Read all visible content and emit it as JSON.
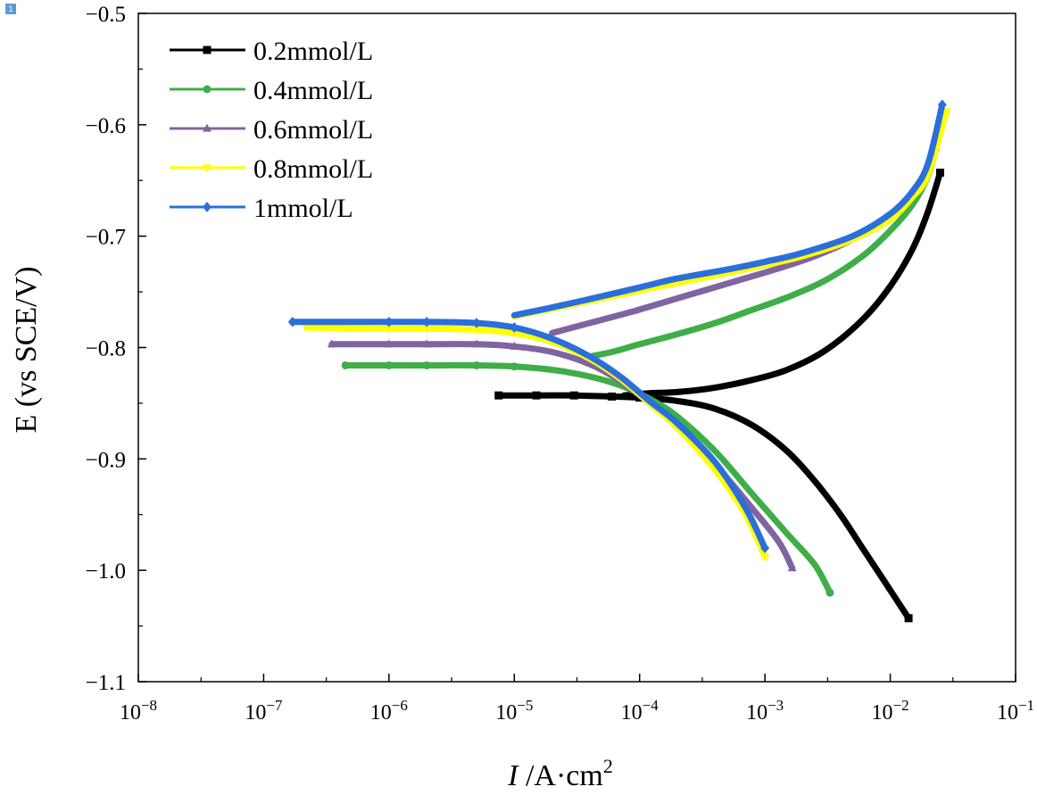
{
  "badge": "1",
  "chart_data": {
    "type": "line",
    "title": "",
    "xlabel": "I /A·cm²",
    "ylabel": "E (vs SCE/V)",
    "x_scale": "log",
    "xlim": [
      1e-08,
      0.1
    ],
    "ylim": [
      -1.1,
      -0.5
    ],
    "x_ticks": [
      {
        "value": 1e-08,
        "base": "10",
        "exp": "−8"
      },
      {
        "value": 1e-07,
        "base": "10",
        "exp": "−7"
      },
      {
        "value": 1e-06,
        "base": "10",
        "exp": "−6"
      },
      {
        "value": 1e-05,
        "base": "10",
        "exp": "−5"
      },
      {
        "value": 0.0001,
        "base": "10",
        "exp": "−4"
      },
      {
        "value": 0.001,
        "base": "10",
        "exp": "−3"
      },
      {
        "value": 0.01,
        "base": "10",
        "exp": "−2"
      },
      {
        "value": 0.1,
        "base": "10",
        "exp": "−1"
      }
    ],
    "y_ticks": [
      {
        "value": -0.5,
        "label": "−0.5"
      },
      {
        "value": -0.6,
        "label": "−0.6"
      },
      {
        "value": -0.7,
        "label": "−0.7"
      },
      {
        "value": -0.8,
        "label": "−0.8"
      },
      {
        "value": -0.9,
        "label": "−0.9"
      },
      {
        "value": -1.0,
        "label": "−1.0"
      },
      {
        "value": -1.1,
        "label": "−1.1"
      }
    ],
    "legend_position": "top-left",
    "series": [
      {
        "name": "0.2mmol/L",
        "color": "#000000",
        "marker": "square",
        "anodic": [
          [
            7.5e-05,
            -0.843
          ],
          [
            0.00012,
            -0.841
          ],
          [
            0.0002,
            -0.84
          ],
          [
            0.0004,
            -0.836
          ],
          [
            0.0008,
            -0.829
          ],
          [
            0.0015,
            -0.82
          ],
          [
            0.003,
            -0.803
          ],
          [
            0.006,
            -0.775
          ],
          [
            0.01,
            -0.745
          ],
          [
            0.015,
            -0.712
          ],
          [
            0.02,
            -0.678
          ],
          [
            0.025,
            -0.643
          ]
        ],
        "cathodic": [
          [
            7.5e-06,
            -0.843
          ],
          [
            1.5e-05,
            -0.843
          ],
          [
            3e-05,
            -0.843
          ],
          [
            6e-05,
            -0.844
          ],
          [
            0.0001,
            -0.845
          ],
          [
            0.0002,
            -0.848
          ],
          [
            0.0004,
            -0.855
          ],
          [
            0.0008,
            -0.87
          ],
          [
            0.0015,
            -0.893
          ],
          [
            0.0025,
            -0.92
          ],
          [
            0.004,
            -0.95
          ],
          [
            0.006,
            -0.98
          ],
          [
            0.009,
            -1.01
          ],
          [
            0.014,
            -1.043
          ]
        ]
      },
      {
        "name": "0.4mmol/L",
        "color": "#3fae49",
        "marker": "circle",
        "anodic": [
          [
            4e-05,
            -0.808
          ],
          [
            6e-05,
            -0.804
          ],
          [
            0.0001,
            -0.797
          ],
          [
            0.0002,
            -0.788
          ],
          [
            0.0004,
            -0.778
          ],
          [
            0.0008,
            -0.766
          ],
          [
            0.0015,
            -0.755
          ],
          [
            0.003,
            -0.74
          ],
          [
            0.006,
            -0.718
          ],
          [
            0.01,
            -0.695
          ],
          [
            0.015,
            -0.672
          ],
          [
            0.02,
            -0.646
          ],
          [
            0.023,
            -0.622
          ]
        ],
        "cathodic": [
          [
            4.5e-07,
            -0.816
          ],
          [
            1e-06,
            -0.816
          ],
          [
            2e-06,
            -0.816
          ],
          [
            5e-06,
            -0.816
          ],
          [
            1e-05,
            -0.817
          ],
          [
            2e-05,
            -0.82
          ],
          [
            4e-05,
            -0.826
          ],
          [
            7e-05,
            -0.834
          ],
          [
            0.00012,
            -0.846
          ],
          [
            0.0002,
            -0.862
          ],
          [
            0.0004,
            -0.893
          ],
          [
            0.0008,
            -0.932
          ],
          [
            0.0015,
            -0.967
          ],
          [
            0.0025,
            -0.995
          ],
          [
            0.0033,
            -1.02
          ]
        ]
      },
      {
        "name": "0.6mmol/L",
        "color": "#8064a2",
        "marker": "triangle-up",
        "anodic": [
          [
            2e-05,
            -0.787
          ],
          [
            4e-05,
            -0.778
          ],
          [
            8e-05,
            -0.769
          ],
          [
            0.00015,
            -0.76
          ],
          [
            0.0003,
            -0.75
          ],
          [
            0.0006,
            -0.74
          ],
          [
            0.0012,
            -0.73
          ],
          [
            0.0025,
            -0.718
          ],
          [
            0.005,
            -0.703
          ],
          [
            0.01,
            -0.683
          ],
          [
            0.015,
            -0.663
          ],
          [
            0.02,
            -0.64
          ],
          [
            0.025,
            -0.6
          ]
        ],
        "cathodic": [
          [
            3.5e-07,
            -0.797
          ],
          [
            1e-06,
            -0.797
          ],
          [
            2e-06,
            -0.797
          ],
          [
            5e-06,
            -0.797
          ],
          [
            1e-05,
            -0.799
          ],
          [
            2e-05,
            -0.804
          ],
          [
            4e-05,
            -0.815
          ],
          [
            7e-05,
            -0.83
          ],
          [
            0.00012,
            -0.85
          ],
          [
            0.0002,
            -0.87
          ],
          [
            0.0004,
            -0.905
          ],
          [
            0.0008,
            -0.945
          ],
          [
            0.0013,
            -0.975
          ],
          [
            0.00165,
            -0.998
          ]
        ]
      },
      {
        "name": "0.8mmol/L",
        "color": "#ffff00",
        "marker": "triangle-down",
        "anodic": [
          [
            1e-05,
            -0.772
          ],
          [
            2e-05,
            -0.765
          ],
          [
            5e-05,
            -0.756
          ],
          [
            0.0001,
            -0.749
          ],
          [
            0.0002,
            -0.742
          ],
          [
            0.0005,
            -0.733
          ],
          [
            0.001,
            -0.726
          ],
          [
            0.002,
            -0.718
          ],
          [
            0.005,
            -0.703
          ],
          [
            0.01,
            -0.685
          ],
          [
            0.015,
            -0.665
          ],
          [
            0.02,
            -0.645
          ],
          [
            0.028,
            -0.588
          ]
        ],
        "cathodic": [
          [
            2.2e-07,
            -0.782
          ],
          [
            1e-06,
            -0.783
          ],
          [
            2e-06,
            -0.783
          ],
          [
            5e-06,
            -0.784
          ],
          [
            1e-05,
            -0.787
          ],
          [
            2e-05,
            -0.795
          ],
          [
            4e-05,
            -0.81
          ],
          [
            7e-05,
            -0.828
          ],
          [
            0.00012,
            -0.85
          ],
          [
            0.0002,
            -0.872
          ],
          [
            0.0004,
            -0.91
          ],
          [
            0.0007,
            -0.95
          ],
          [
            0.001,
            -0.988
          ]
        ]
      },
      {
        "name": "1mmol/L",
        "color": "#2a6fdb",
        "marker": "diamond",
        "anodic": [
          [
            1e-05,
            -0.771
          ],
          [
            2e-05,
            -0.764
          ],
          [
            5e-05,
            -0.754
          ],
          [
            0.0001,
            -0.746
          ],
          [
            0.0002,
            -0.738
          ],
          [
            0.0005,
            -0.73
          ],
          [
            0.001,
            -0.723
          ],
          [
            0.002,
            -0.715
          ],
          [
            0.005,
            -0.7
          ],
          [
            0.01,
            -0.68
          ],
          [
            0.015,
            -0.66
          ],
          [
            0.02,
            -0.635
          ],
          [
            0.026,
            -0.582
          ]
        ],
        "cathodic": [
          [
            1.7e-07,
            -0.777
          ],
          [
            1e-06,
            -0.777
          ],
          [
            2e-06,
            -0.777
          ],
          [
            5e-06,
            -0.778
          ],
          [
            1e-05,
            -0.782
          ],
          [
            2e-05,
            -0.792
          ],
          [
            4e-05,
            -0.808
          ],
          [
            7e-05,
            -0.826
          ],
          [
            0.00012,
            -0.848
          ],
          [
            0.0002,
            -0.868
          ],
          [
            0.0004,
            -0.903
          ],
          [
            0.0007,
            -0.944
          ],
          [
            0.001,
            -0.98
          ]
        ]
      }
    ]
  }
}
